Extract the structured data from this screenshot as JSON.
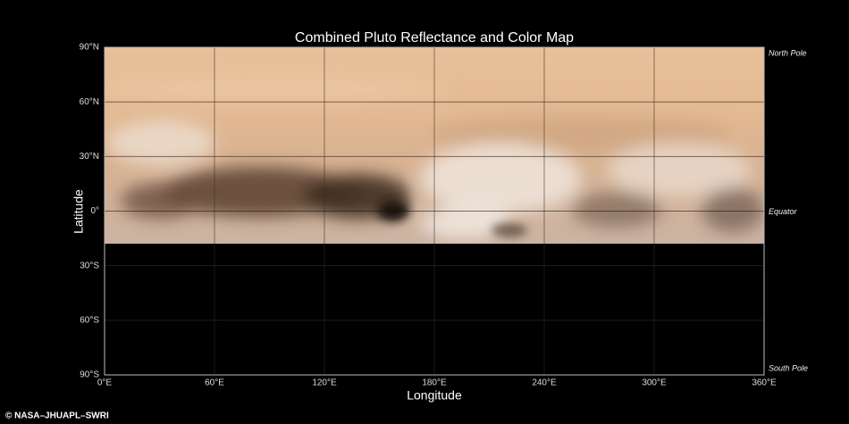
{
  "map": {
    "title": "Combined Pluto Reflectance and Color Map",
    "x_axis": {
      "label": "Longitude",
      "range": [
        0,
        360
      ],
      "ticks": [
        {
          "value": 0,
          "label": "0°E"
        },
        {
          "value": 60,
          "label": "60°E"
        },
        {
          "value": 120,
          "label": "120°E"
        },
        {
          "value": 180,
          "label": "180°E"
        },
        {
          "value": 240,
          "label": "240°E"
        },
        {
          "value": 300,
          "label": "300°E"
        },
        {
          "value": 360,
          "label": "360°E"
        }
      ]
    },
    "y_axis": {
      "label": "Latitude",
      "range": [
        -90,
        90
      ],
      "ticks": [
        {
          "value": 90,
          "label": "90°N"
        },
        {
          "value": 60,
          "label": "60°N"
        },
        {
          "value": 30,
          "label": "30°N"
        },
        {
          "value": 0,
          "label": "0°"
        },
        {
          "value": -30,
          "label": "30°S"
        },
        {
          "value": -60,
          "label": "60°S"
        },
        {
          "value": -90,
          "label": "90°S"
        }
      ]
    },
    "annotations": [
      {
        "latitude": 90,
        "label": "North Pole"
      },
      {
        "latitude": 0,
        "label": "Equator"
      },
      {
        "latitude": -90,
        "label": "South Pole"
      }
    ],
    "credit": "© NASA–JHUAPL–SWRI"
  }
}
